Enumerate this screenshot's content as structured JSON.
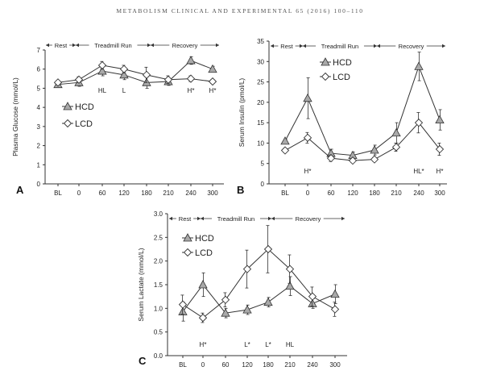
{
  "header": {
    "journal_line": "METABOLISM CLINICAL AND EXPERIMENTAL 65 (2016) 100–110"
  },
  "chart_data": [
    {
      "type": "line",
      "panel_label": "A",
      "ylabel": "Plasma Glucose (mmol/L)",
      "categories": [
        "BL",
        "0",
        "60",
        "120",
        "180",
        "210",
        "240",
        "300"
      ],
      "ylim": [
        0,
        7
      ],
      "yticks": [
        "0",
        "1",
        "2",
        "3",
        "4",
        "5",
        "6",
        "7"
      ],
      "series": [
        {
          "name": "HCD",
          "marker": "triangle",
          "values": [
            5.2,
            5.3,
            5.9,
            5.7,
            5.3,
            5.35,
            6.45,
            6.0
          ],
          "errors": [
            0.1,
            0.2,
            0.25,
            0.25,
            0.3,
            0.2,
            0.2,
            0.15
          ]
        },
        {
          "name": "LCD",
          "marker": "diamond",
          "values": [
            5.3,
            5.45,
            6.2,
            6.0,
            5.7,
            5.45,
            5.5,
            5.35
          ],
          "errors": [
            0.1,
            0.15,
            0.2,
            0.2,
            0.4,
            0.2,
            0.15,
            0.1
          ]
        }
      ],
      "phases": [
        "Rest",
        "Treadmill Run",
        "Recovery"
      ],
      "annotations": [
        "HL",
        "L",
        "H*",
        "H*"
      ],
      "annotation_categories": [
        "60",
        "120",
        "240",
        "300"
      ]
    },
    {
      "type": "line",
      "panel_label": "B",
      "ylabel": "Serum Insulin (pmol/L)",
      "categories": [
        "BL",
        "0",
        "60",
        "120",
        "180",
        "210",
        "240",
        "300"
      ],
      "ylim": [
        0,
        35
      ],
      "yticks": [
        "0",
        "5",
        "10",
        "15",
        "20",
        "25",
        "30",
        "35"
      ],
      "series": [
        {
          "name": "HCD",
          "marker": "triangle",
          "values": [
            10.5,
            21.0,
            7.5,
            7.0,
            8.3,
            12.5,
            28.8,
            15.7
          ],
          "errors": [
            0.5,
            5.0,
            1.0,
            0.8,
            1.2,
            2.5,
            3.5,
            2.5
          ]
        },
        {
          "name": "LCD",
          "marker": "diamond",
          "values": [
            8.2,
            11.3,
            6.3,
            5.7,
            6.0,
            9.0,
            15.0,
            8.5
          ],
          "errors": [
            0.5,
            1.3,
            0.8,
            0.5,
            0.5,
            1.0,
            2.5,
            1.5
          ]
        }
      ],
      "phases": [
        "Rest",
        "Treadmill Run",
        "Recovery"
      ],
      "annotations": [
        "H*",
        "HL*",
        "H*"
      ],
      "annotation_categories": [
        "0",
        "240",
        "300"
      ]
    },
    {
      "type": "line",
      "panel_label": "C",
      "ylabel": "Serum Lactate (mmol/L)",
      "categories": [
        "BL",
        "0",
        "60",
        "120",
        "180",
        "210",
        "240",
        "300"
      ],
      "ylim": [
        0,
        3
      ],
      "yticks": [
        "0.0",
        "0.5",
        "1.0",
        "1.5",
        "2.0",
        "2.5",
        "3.0"
      ],
      "series": [
        {
          "name": "HCD",
          "marker": "triangle",
          "values": [
            0.93,
            1.5,
            0.9,
            0.97,
            1.13,
            1.47,
            1.1,
            1.3
          ],
          "errors": [
            0.2,
            0.25,
            0.1,
            0.1,
            0.1,
            0.2,
            0.1,
            0.2
          ]
        },
        {
          "name": "LCD",
          "marker": "diamond",
          "values": [
            1.08,
            0.8,
            1.18,
            1.83,
            2.25,
            1.83,
            1.25,
            0.98
          ],
          "errors": [
            0.2,
            0.1,
            0.15,
            0.4,
            0.5,
            0.3,
            0.2,
            0.15
          ]
        }
      ],
      "phases": [
        "Rest",
        "Treadmill Run",
        "Recovery"
      ],
      "annotations": [
        "H*",
        "L*",
        "L*",
        "HL"
      ],
      "annotation_categories": [
        "0",
        "120",
        "180",
        "210"
      ]
    }
  ]
}
